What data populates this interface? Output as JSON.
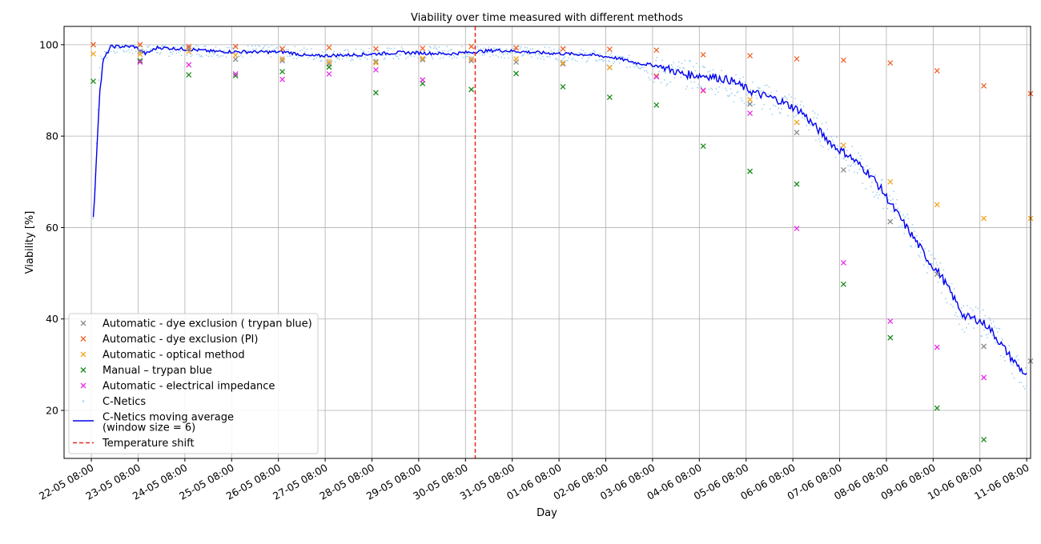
{
  "chart_data": {
    "type": "scatter",
    "title": "Viability over time measured with different methods",
    "xlabel": "Day",
    "ylabel": "Viability [%]",
    "x_ticks": [
      "22-05 08:00",
      "23-05 08:00",
      "24-05 08:00",
      "25-05 08:00",
      "26-05 08:00",
      "27-05 08:00",
      "28-05 08:00",
      "29-05 08:00",
      "30-05 08:00",
      "31-05 08:00",
      "01-06 08:00",
      "02-06 08:00",
      "03-06 08:00",
      "04-06 08:00",
      "05-06 08:00",
      "06-06 08:00",
      "07-06 08:00",
      "08-06 08:00",
      "09-06 08:00",
      "10-06 08:00",
      "11-06 08:00"
    ],
    "xlim": [
      "2023-05-21T18:00",
      "2023-06-11T10:00"
    ],
    "y_ticks": [
      20,
      40,
      60,
      80,
      100
    ],
    "ylim": [
      9.5,
      104
    ],
    "grid": true,
    "legend_position": "lower-left",
    "temperature_shift": {
      "x": "2023-05-30T13:00",
      "color": "#e8281e",
      "label": "Temperature shift"
    },
    "series": [
      {
        "name": "Automatic - dye exclusion ( trypan blue)",
        "marker": "x",
        "color": "#8a8a8a",
        "points": [
          [
            "2023-05-23T09:00",
            98.5
          ],
          [
            "2023-05-24T10:00",
            99.2
          ],
          [
            "2023-05-25T10:00",
            96.8
          ],
          [
            "2023-05-26T10:00",
            96.5
          ],
          [
            "2023-05-27T10:00",
            95.8
          ],
          [
            "2023-05-28T10:00",
            96.3
          ],
          [
            "2023-05-29T10:00",
            96.7
          ],
          [
            "2023-05-30T11:00",
            96.5
          ],
          [
            "2023-05-31T10:00",
            96.2
          ],
          [
            "2023-06-01T10:00",
            95.8
          ],
          [
            "2023-06-02T10:00",
            95.0
          ],
          [
            "2023-06-03T10:00",
            93.0
          ],
          [
            "2023-06-04T10:00",
            90.0
          ],
          [
            "2023-06-05T10:00",
            87.0
          ],
          [
            "2023-06-06T10:00",
            80.8
          ],
          [
            "2023-06-07T10:00",
            72.6
          ],
          [
            "2023-06-08T10:00",
            61.3
          ],
          [
            "2023-06-09T10:00",
            49.8
          ],
          [
            "2023-06-10T10:00",
            34.0
          ],
          [
            "2023-06-11T10:00",
            30.8
          ]
        ]
      },
      {
        "name": "Automatic - dye exclusion (PI)",
        "marker": "x",
        "color": "#f0632a",
        "points": [
          [
            "2023-05-22T09:00",
            100.0
          ],
          [
            "2023-05-23T09:00",
            100.0
          ],
          [
            "2023-05-24T10:00",
            99.6
          ],
          [
            "2023-05-25T10:00",
            99.6
          ],
          [
            "2023-05-26T10:00",
            99.1
          ],
          [
            "2023-05-27T10:00",
            99.4
          ],
          [
            "2023-05-28T10:00",
            99.1
          ],
          [
            "2023-05-29T10:00",
            99.2
          ],
          [
            "2023-05-30T11:00",
            99.6
          ],
          [
            "2023-05-31T10:00",
            99.3
          ],
          [
            "2023-06-01T10:00",
            99.1
          ],
          [
            "2023-06-02T10:00",
            99.0
          ],
          [
            "2023-06-03T10:00",
            98.8
          ],
          [
            "2023-06-04T10:00",
            97.8
          ],
          [
            "2023-06-05T10:00",
            97.6
          ],
          [
            "2023-06-06T10:00",
            96.9
          ],
          [
            "2023-06-07T10:00",
            96.6
          ],
          [
            "2023-06-08T10:00",
            96.0
          ],
          [
            "2023-06-09T10:00",
            94.3
          ],
          [
            "2023-06-10T10:00",
            91.0
          ],
          [
            "2023-06-11T10:00",
            89.3
          ]
        ]
      },
      {
        "name": "Automatic - optical method",
        "marker": "x",
        "color": "#f5a623",
        "points": [
          [
            "2023-05-22T09:00",
            98.0
          ],
          [
            "2023-05-23T09:00",
            97.9
          ],
          [
            "2023-05-24T10:00",
            98.5
          ],
          [
            "2023-05-25T10:00",
            97.7
          ],
          [
            "2023-05-26T10:00",
            96.9
          ],
          [
            "2023-05-27T10:00",
            96.3
          ],
          [
            "2023-05-28T10:00",
            96.0
          ],
          [
            "2023-05-29T10:00",
            97.0
          ],
          [
            "2023-05-30T11:00",
            96.9
          ],
          [
            "2023-05-31T10:00",
            96.9
          ],
          [
            "2023-06-01T10:00",
            96.0
          ],
          [
            "2023-06-02T10:00",
            95.0
          ],
          [
            "2023-06-03T10:00",
            93.2
          ],
          [
            "2023-06-04T10:00",
            89.9
          ],
          [
            "2023-06-05T10:00",
            88.0
          ],
          [
            "2023-06-06T10:00",
            83.0
          ],
          [
            "2023-06-07T10:00",
            78.0
          ],
          [
            "2023-06-08T10:00",
            70.0
          ],
          [
            "2023-06-09T10:00",
            65.0
          ],
          [
            "2023-06-10T10:00",
            62.0
          ],
          [
            "2023-06-11T10:00",
            62.0
          ]
        ]
      },
      {
        "name": "Manual – trypan blue",
        "marker": "x",
        "color": "#1a8a1a",
        "points": [
          [
            "2023-05-22T09:00",
            92.0
          ],
          [
            "2023-05-23T09:00",
            96.5
          ],
          [
            "2023-05-24T10:00",
            93.4
          ],
          [
            "2023-05-25T10:00",
            93.2
          ],
          [
            "2023-05-26T10:00",
            94.1
          ],
          [
            "2023-05-27T10:00",
            95.1
          ],
          [
            "2023-05-28T10:00",
            89.5
          ],
          [
            "2023-05-29T10:00",
            91.5
          ],
          [
            "2023-05-30T11:00",
            90.2
          ],
          [
            "2023-05-31T10:00",
            93.7
          ],
          [
            "2023-06-01T10:00",
            90.8
          ],
          [
            "2023-06-02T10:00",
            88.5
          ],
          [
            "2023-06-03T10:00",
            86.8
          ],
          [
            "2023-06-04T10:00",
            77.8
          ],
          [
            "2023-06-05T10:00",
            72.3
          ],
          [
            "2023-06-06T10:00",
            69.5
          ],
          [
            "2023-06-07T10:00",
            47.6
          ],
          [
            "2023-06-08T10:00",
            35.9
          ],
          [
            "2023-06-09T10:00",
            20.5
          ],
          [
            "2023-06-10T10:00",
            13.6
          ]
        ]
      },
      {
        "name": "Automatic - electrical impedance",
        "marker": "x",
        "color": "#e62ee6",
        "points": [
          [
            "2023-05-23T09:00",
            96.2
          ],
          [
            "2023-05-24T10:00",
            95.6
          ],
          [
            "2023-05-25T10:00",
            93.6
          ],
          [
            "2023-05-26T10:00",
            92.4
          ],
          [
            "2023-05-27T10:00",
            93.6
          ],
          [
            "2023-05-28T10:00",
            94.5
          ],
          [
            "2023-05-29T10:00",
            92.3
          ],
          [
            "2023-06-03T10:00",
            93.0
          ],
          [
            "2023-06-04T10:00",
            90.0
          ],
          [
            "2023-06-05T10:00",
            85.0
          ],
          [
            "2023-06-06T10:00",
            59.8
          ],
          [
            "2023-06-07T10:00",
            52.3
          ],
          [
            "2023-06-08T10:00",
            39.5
          ],
          [
            "2023-06-09T10:00",
            33.8
          ],
          [
            "2023-06-10T10:00",
            27.2
          ]
        ]
      },
      {
        "name": "C-Netics",
        "marker": "dot",
        "color": "#9fd0ee",
        "keypoints": [
          [
            "2023-05-22T09:00",
            62
          ],
          [
            "2023-05-22T12:00",
            96
          ],
          [
            "2023-05-22T18:00",
            99.5
          ],
          [
            "2023-05-24T00:00",
            98.8
          ],
          [
            "2023-05-26T12:00",
            98.5
          ],
          [
            "2023-05-27T12:00",
            97.5
          ],
          [
            "2023-05-29T00:00",
            98.2
          ],
          [
            "2023-05-31T00:00",
            98.5
          ],
          [
            "2023-06-01T08:00",
            98.0
          ],
          [
            "2023-06-02T00:00",
            97.5
          ],
          [
            "2023-06-03T00:00",
            96.0
          ],
          [
            "2023-06-03T12:00",
            94.0
          ],
          [
            "2023-06-04T12:00",
            93.0
          ],
          [
            "2023-06-05T12:00",
            89.0
          ],
          [
            "2023-06-06T08:00",
            86.5
          ],
          [
            "2023-06-06T20:00",
            82.0
          ],
          [
            "2023-06-07T12:00",
            76.0
          ],
          [
            "2023-06-08T00:00",
            70.0
          ],
          [
            "2023-06-08T12:00",
            65.0
          ],
          [
            "2023-06-09T00:00",
            56.0
          ],
          [
            "2023-06-09T12:00",
            49.0
          ],
          [
            "2023-06-10T00:00",
            40.0
          ],
          [
            "2023-06-10T12:00",
            39.0
          ],
          [
            "2023-06-11T00:00",
            31.0
          ],
          [
            "2023-06-11T08:00",
            27.0
          ]
        ]
      },
      {
        "name": "C-Netics moving average\n(window size = 6)",
        "marker": "line",
        "color": "#0000ee",
        "keypoints": [
          [
            "2023-05-22T09:00",
            61.5
          ],
          [
            "2023-05-22T10:00",
            70
          ],
          [
            "2023-05-22T12:00",
            88
          ],
          [
            "2023-05-22T14:00",
            96.5
          ],
          [
            "2023-05-22T18:00",
            99.6
          ],
          [
            "2023-05-23T06:00",
            99.6
          ],
          [
            "2023-05-23T12:00",
            98.0
          ],
          [
            "2023-05-23T18:00",
            99.4
          ],
          [
            "2023-05-24T12:00",
            98.9
          ],
          [
            "2023-05-25T00:00",
            98.5
          ],
          [
            "2023-05-26T00:00",
            98.4
          ],
          [
            "2023-05-26T12:00",
            98.4
          ],
          [
            "2023-05-27T00:00",
            97.5
          ],
          [
            "2023-05-28T00:00",
            97.8
          ],
          [
            "2023-05-29T00:00",
            98.3
          ],
          [
            "2023-05-30T00:00",
            98.0
          ],
          [
            "2023-05-31T00:00",
            98.8
          ],
          [
            "2023-06-01T00:00",
            98.2
          ],
          [
            "2023-06-02T00:00",
            97.8
          ],
          [
            "2023-06-02T12:00",
            97.2
          ],
          [
            "2023-06-03T00:00",
            96.0
          ],
          [
            "2023-06-03T12:00",
            95.3
          ],
          [
            "2023-06-04T00:00",
            93.5
          ],
          [
            "2023-06-04T12:00",
            93.2
          ],
          [
            "2023-06-05T00:00",
            92.2
          ],
          [
            "2023-06-05T12:00",
            89.5
          ],
          [
            "2023-06-06T00:00",
            88.0
          ],
          [
            "2023-06-06T12:00",
            85.5
          ],
          [
            "2023-06-07T00:00",
            80.0
          ],
          [
            "2023-06-07T06:00",
            77.5
          ],
          [
            "2023-06-07T12:00",
            76.0
          ],
          [
            "2023-06-08T00:00",
            71.5
          ],
          [
            "2023-06-08T06:00",
            68.0
          ],
          [
            "2023-06-08T12:00",
            64.0
          ],
          [
            "2023-06-09T00:00",
            56.5
          ],
          [
            "2023-06-09T06:00",
            52.5
          ],
          [
            "2023-06-09T12:00",
            49.5
          ],
          [
            "2023-06-10T00:00",
            40.5
          ],
          [
            "2023-06-10T06:00",
            40.0
          ],
          [
            "2023-06-10T12:00",
            38.5
          ],
          [
            "2023-06-11T00:00",
            31.5
          ],
          [
            "2023-06-11T08:00",
            27.5
          ]
        ]
      }
    ]
  }
}
